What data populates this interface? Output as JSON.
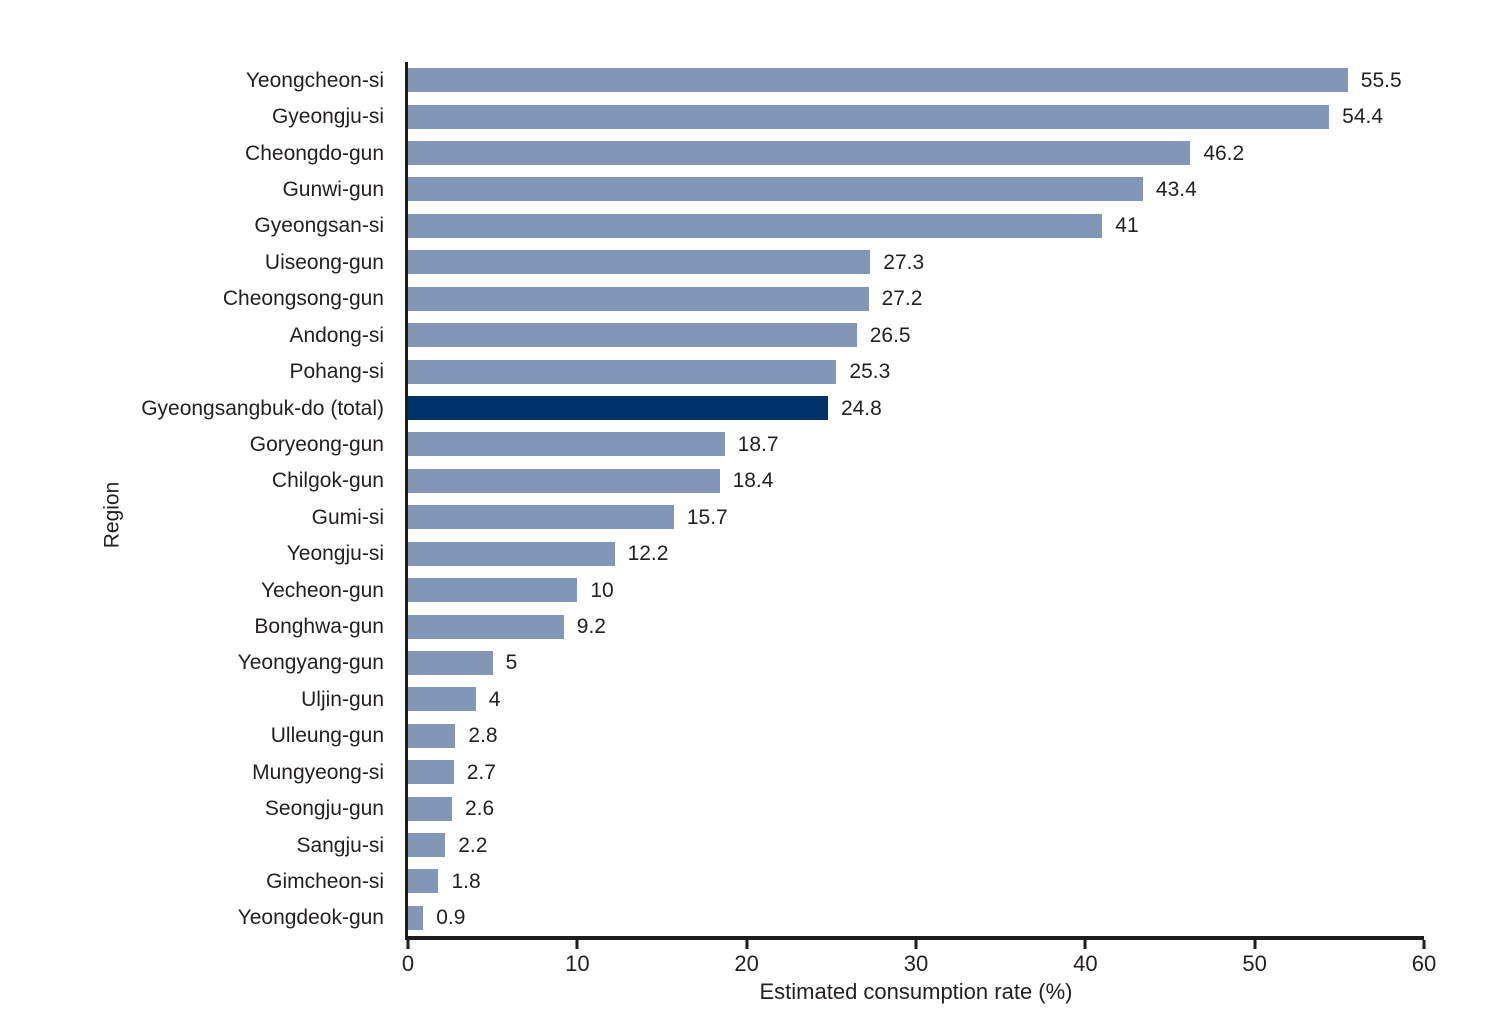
{
  "chart_data": {
    "type": "bar",
    "orientation": "horizontal",
    "title": "",
    "xlabel": "Estimated consumption rate (%)",
    "ylabel": "Region",
    "xlim": [
      0,
      60
    ],
    "x_ticks": [
      0,
      10,
      20,
      30,
      40,
      50,
      60
    ],
    "grid": false,
    "legend": false,
    "bar_color": "#8297b5",
    "highlight_color": "#00326b",
    "highlight_index": 9,
    "axis_color": "#1d1d1b",
    "text_color": "#231f20",
    "categories": [
      "Yeongcheon-si",
      "Gyeongju-si",
      "Cheongdo-gun",
      "Gunwi-gun",
      "Gyeongsan-si",
      "Uiseong-gun",
      "Cheongsong-gun",
      "Andong-si",
      "Pohang-si",
      "Gyeongsangbuk-do (total)",
      "Goryeong-gun",
      "Chilgok-gun",
      "Gumi-si",
      "Yeongju-si",
      "Yecheon-gun",
      "Bonghwa-gun",
      "Yeongyang-gun",
      "Uljin-gun",
      "Ulleung-gun",
      "Mungyeong-si",
      "Seongju-gun",
      "Sangju-si",
      "Gimcheon-si",
      "Yeongdeok-gun"
    ],
    "values": [
      55.5,
      54.4,
      46.2,
      43.4,
      41,
      27.3,
      27.2,
      26.5,
      25.3,
      24.8,
      18.7,
      18.4,
      15.7,
      12.2,
      10,
      9.2,
      5,
      4,
      2.8,
      2.7,
      2.6,
      2.2,
      1.8,
      0.9
    ],
    "value_labels": [
      "55.5",
      "54.4",
      "46.2",
      "43.4",
      "41",
      "27.3",
      "27.2",
      "26.5",
      "25.3",
      "24.8",
      "18.7",
      "18.4",
      "15.7",
      "12.2",
      "10",
      "9.2",
      "5",
      "4",
      "2.8",
      "2.7",
      "2.6",
      "2.2",
      "1.8",
      "0.9"
    ]
  }
}
